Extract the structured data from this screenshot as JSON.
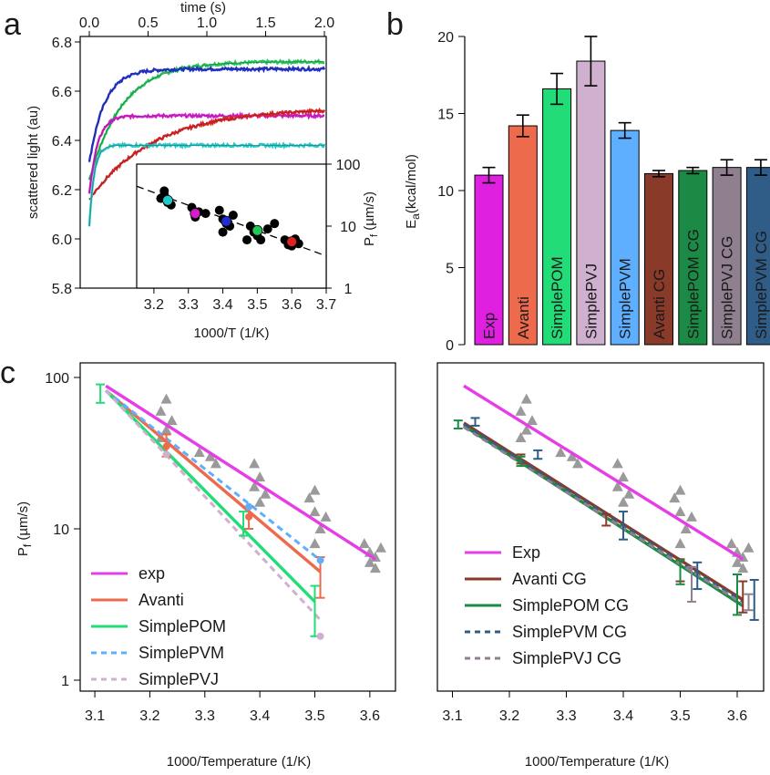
{
  "panel_labels": {
    "a": "a",
    "b": "b",
    "c": "c"
  },
  "chart_data": [
    {
      "id": "a-main",
      "type": "line",
      "x_label": "time (s)",
      "y_label": "scattered light (au)",
      "xlim": [
        0,
        2.0
      ],
      "ylim": [
        5.8,
        6.8
      ],
      "x_ticks": [
        "0.0",
        "0.5",
        "1.0",
        "1.5",
        "2.0"
      ],
      "y_ticks": [
        "5.8",
        "6.0",
        "6.2",
        "6.4",
        "6.6",
        "6.8"
      ],
      "series": [
        {
          "color": "#22c75a",
          "y0": 6.24,
          "ymax": 6.72,
          "tau": 0.28
        },
        {
          "color": "#1f2fcf",
          "y0": 6.31,
          "ymax": 6.69,
          "tau": 0.13
        },
        {
          "color": "#d81bd0",
          "y0": 6.18,
          "ymax": 6.5,
          "tau": 0.07
        },
        {
          "color": "#dd2222",
          "y0": 6.16,
          "ymax": 6.53,
          "tau": 0.55
        },
        {
          "color": "#22c9c9",
          "y0": 6.05,
          "ymax": 6.38,
          "tau": 0.04
        }
      ]
    },
    {
      "id": "a-inset",
      "type": "scatter",
      "x_label": "1000/T (1/K)",
      "y_label": "P_f (µm/s)",
      "y_scale": "log",
      "xlim": [
        3.15,
        3.7
      ],
      "ylim": [
        1,
        100
      ],
      "x_ticks": [
        "3.2",
        "3.3",
        "3.4",
        "3.5",
        "3.6",
        "3.7"
      ],
      "y_ticks": [
        "1",
        "10",
        "100"
      ],
      "fit": {
        "x": [
          3.15,
          3.7
        ],
        "y": [
          44,
          3.3
        ]
      },
      "points": [
        [
          3.22,
          28
        ],
        [
          3.23,
          32
        ],
        [
          3.24,
          24
        ],
        [
          3.25,
          22
        ],
        [
          3.23,
          37
        ],
        [
          3.31,
          20
        ],
        [
          3.33,
          17
        ],
        [
          3.32,
          14
        ],
        [
          3.35,
          16
        ],
        [
          3.39,
          18
        ],
        [
          3.4,
          13
        ],
        [
          3.41,
          11
        ],
        [
          3.42,
          10
        ],
        [
          3.4,
          8
        ],
        [
          3.43,
          15
        ],
        [
          3.48,
          10
        ],
        [
          3.49,
          8
        ],
        [
          3.5,
          7
        ],
        [
          3.51,
          6
        ],
        [
          3.53,
          9
        ],
        [
          3.47,
          6
        ],
        [
          3.55,
          11
        ],
        [
          3.58,
          6
        ],
        [
          3.59,
          5
        ],
        [
          3.6,
          5.5
        ],
        [
          3.61,
          6.2
        ],
        [
          3.6,
          4.8
        ],
        [
          3.62,
          5.2
        ]
      ],
      "highlight": [
        {
          "x": 3.24,
          "y": 26,
          "color": "#22c9c9"
        },
        {
          "x": 3.32,
          "y": 16,
          "color": "#d81bd0"
        },
        {
          "x": 3.41,
          "y": 12,
          "color": "#1f2fcf"
        },
        {
          "x": 3.5,
          "y": 8.5,
          "color": "#22c75a"
        },
        {
          "x": 3.6,
          "y": 5.6,
          "color": "#dd2222"
        }
      ]
    },
    {
      "id": "b",
      "type": "bar",
      "y_label": "E_a(kcal/mol)",
      "ylim": [
        0,
        20
      ],
      "y_ticks": [
        "0",
        "5",
        "10",
        "15",
        "20"
      ],
      "categories": [
        "Exp",
        "Avanti",
        "SimplePOM",
        "SimplePVJ",
        "SimplePVM",
        "Avanti CG",
        "SimplePOM CG",
        "SimplePVJ CG",
        "SimplePVM CG"
      ],
      "values": [
        11.0,
        14.2,
        16.6,
        18.4,
        13.9,
        11.1,
        11.3,
        11.5,
        11.5
      ],
      "errors": [
        0.5,
        0.7,
        1.0,
        1.6,
        0.5,
        0.2,
        0.2,
        0.5,
        0.5
      ],
      "colors": [
        "#e020e0",
        "#ee6a4c",
        "#22dd77",
        "#cfb0cf",
        "#5eafff",
        "#8a3a28",
        "#1b8a45",
        "#8f7f8f",
        "#2f5d87"
      ]
    },
    {
      "id": "c-left",
      "type": "line",
      "x_label": "1000/Temperature (1/K)",
      "y_label": "P_f (µm/s)",
      "y_scale": "log",
      "xlim": [
        3.08,
        3.64
      ],
      "ylim": [
        1,
        100
      ],
      "x_ticks": [
        "3.1",
        "3.2",
        "3.3",
        "3.4",
        "3.5",
        "3.6"
      ],
      "y_ticks": [
        "1",
        "10",
        "100"
      ],
      "gray_points": [
        [
          3.23,
          72
        ],
        [
          3.22,
          60
        ],
        [
          3.24,
          52
        ],
        [
          3.23,
          45
        ],
        [
          3.22,
          40
        ],
        [
          3.29,
          32
        ],
        [
          3.31,
          30
        ],
        [
          3.32,
          27
        ],
        [
          3.39,
          27
        ],
        [
          3.4,
          22
        ],
        [
          3.39,
          19
        ],
        [
          3.41,
          17
        ],
        [
          3.4,
          15
        ],
        [
          3.49,
          16
        ],
        [
          3.5,
          13
        ],
        [
          3.51,
          10
        ],
        [
          3.5,
          8
        ],
        [
          3.52,
          12
        ],
        [
          3.5,
          18
        ],
        [
          3.59,
          8
        ],
        [
          3.6,
          7
        ],
        [
          3.61,
          6.5
        ],
        [
          3.6,
          6
        ],
        [
          3.62,
          7.5
        ],
        [
          3.61,
          5.5
        ]
      ],
      "series": [
        {
          "name": "exp",
          "color": "#e63ee6",
          "dash": false,
          "x": [
            3.12,
            3.61
          ],
          "y": [
            88,
            6.3
          ]
        },
        {
          "name": "Avanti",
          "color": "#ee6a4c",
          "dash": false,
          "x": [
            3.12,
            3.51
          ],
          "y": [
            82,
            5.2
          ]
        },
        {
          "name": "SimplePOM",
          "color": "#22dd77",
          "dash": false,
          "x": [
            3.12,
            3.5
          ],
          "y": [
            82,
            3.3
          ]
        },
        {
          "name": "SimplePVM",
          "color": "#5eafff",
          "dash": true,
          "x": [
            3.12,
            3.51
          ],
          "y": [
            82,
            6.2
          ]
        },
        {
          "name": "SimplePVJ",
          "color": "#cfb0cf",
          "dash": true,
          "x": [
            3.12,
            3.51
          ],
          "y": [
            82,
            2.5
          ]
        }
      ],
      "errorbars": [
        {
          "color": "#22dd77",
          "x": 3.11,
          "y": 78,
          "lo": 68,
          "hi": 90
        },
        {
          "color": "#ee6a4c",
          "x": 3.23,
          "y": 35,
          "lo": 30,
          "hi": 42
        },
        {
          "color": "#ee6a4c",
          "x": 3.38,
          "y": 12,
          "lo": 10,
          "hi": 14
        },
        {
          "color": "#22dd77",
          "x": 3.37,
          "y": 11,
          "lo": 9,
          "hi": 13
        },
        {
          "color": "#ee6a4c",
          "x": 3.51,
          "y": 5.2,
          "lo": 3.5,
          "hi": 6.5
        },
        {
          "color": "#22dd77",
          "x": 3.5,
          "y": 3.3,
          "lo": 1.95,
          "hi": 4.2
        }
      ],
      "markers": [
        {
          "color": "#cfb0cf",
          "x": 3.51,
          "y": 1.95
        },
        {
          "color": "#5eafff",
          "x": 3.51,
          "y": 6.2
        },
        {
          "color": "#ee6a4c",
          "x": 3.38,
          "y": 12
        },
        {
          "color": "#5eafff",
          "x": 3.38,
          "y": 14
        },
        {
          "color": "#cfb0cf",
          "x": 3.23,
          "y": 31
        },
        {
          "color": "#ee6a4c",
          "x": 3.23,
          "y": 35
        }
      ]
    },
    {
      "id": "c-right",
      "type": "line",
      "x_label": "1000/Temperature (1/K)",
      "y_scale": "log",
      "xlim": [
        3.08,
        3.64
      ],
      "ylim": [
        1,
        100
      ],
      "x_ticks": [
        "3.1",
        "3.2",
        "3.3",
        "3.4",
        "3.5",
        "3.6"
      ],
      "gray_points": [
        [
          3.23,
          72
        ],
        [
          3.22,
          60
        ],
        [
          3.24,
          52
        ],
        [
          3.23,
          45
        ],
        [
          3.22,
          40
        ],
        [
          3.29,
          32
        ],
        [
          3.31,
          30
        ],
        [
          3.32,
          27
        ],
        [
          3.39,
          27
        ],
        [
          3.4,
          22
        ],
        [
          3.39,
          19
        ],
        [
          3.41,
          17
        ],
        [
          3.4,
          15
        ],
        [
          3.49,
          16
        ],
        [
          3.5,
          13
        ],
        [
          3.51,
          10
        ],
        [
          3.5,
          8
        ],
        [
          3.52,
          12
        ],
        [
          3.5,
          18
        ],
        [
          3.59,
          8
        ],
        [
          3.6,
          7
        ],
        [
          3.61,
          6.5
        ],
        [
          3.6,
          6
        ],
        [
          3.62,
          7.5
        ],
        [
          3.61,
          5.5
        ]
      ],
      "series": [
        {
          "name": "Exp",
          "color": "#e63ee6",
          "dash": false,
          "x": [
            3.12,
            3.61
          ],
          "y": [
            88,
            6.3
          ]
        },
        {
          "name": "Avanti CG",
          "color": "#8a3a28",
          "dash": false,
          "x": [
            3.12,
            3.61
          ],
          "y": [
            50,
            3.4
          ]
        },
        {
          "name": "SimplePOM CG",
          "color": "#1b8a45",
          "dash": false,
          "x": [
            3.12,
            3.61
          ],
          "y": [
            48,
            3.1
          ]
        },
        {
          "name": "SimplePVM CG",
          "color": "#2f5d87",
          "dash": true,
          "x": [
            3.12,
            3.61
          ],
          "y": [
            49,
            3.3
          ]
        },
        {
          "name": "SimplePVJ CG",
          "color": "#8f7f8f",
          "dash": true,
          "x": [
            3.12,
            3.61
          ],
          "y": [
            47,
            3.2
          ]
        }
      ],
      "errorbars": [
        {
          "color": "#1b8a45",
          "x": 3.11,
          "y": 49,
          "lo": 46,
          "hi": 52
        },
        {
          "color": "#2f5d87",
          "x": 3.14,
          "y": 51,
          "lo": 48,
          "hi": 54
        },
        {
          "color": "#8a3a28",
          "x": 3.22,
          "y": 29,
          "lo": 27,
          "hi": 31
        },
        {
          "color": "#1b8a45",
          "x": 3.22,
          "y": 28,
          "lo": 26,
          "hi": 30
        },
        {
          "color": "#2f5d87",
          "x": 3.25,
          "y": 31,
          "lo": 29,
          "hi": 33
        },
        {
          "color": "#8a3a28",
          "x": 3.37,
          "y": 11.5,
          "lo": 10.5,
          "hi": 12.5
        },
        {
          "color": "#2f5d87",
          "x": 3.4,
          "y": 11,
          "lo": 8.5,
          "hi": 13
        },
        {
          "color": "#8a3a28",
          "x": 3.5,
          "y": 5.5,
          "lo": 4.5,
          "hi": 6.3
        },
        {
          "color": "#1b8a45",
          "x": 3.5,
          "y": 5.3,
          "lo": 4.3,
          "hi": 6.2
        },
        {
          "color": "#2f5d87",
          "x": 3.53,
          "y": 5.0,
          "lo": 4.0,
          "hi": 6.0
        },
        {
          "color": "#8f7f8f",
          "x": 3.52,
          "y": 4.7,
          "lo": 3.3,
          "hi": 5.6
        },
        {
          "color": "#8a3a28",
          "x": 3.61,
          "y": 3.4,
          "lo": 2.8,
          "hi": 4.5
        },
        {
          "color": "#1b8a45",
          "x": 3.6,
          "y": 3.3,
          "lo": 2.7,
          "hi": 5.0
        },
        {
          "color": "#8f7f8f",
          "x": 3.62,
          "y": 3.2,
          "lo": 2.9,
          "hi": 3.7
        },
        {
          "color": "#2f5d87",
          "x": 3.63,
          "y": 3.0,
          "lo": 2.5,
          "hi": 4.6
        }
      ]
    }
  ]
}
